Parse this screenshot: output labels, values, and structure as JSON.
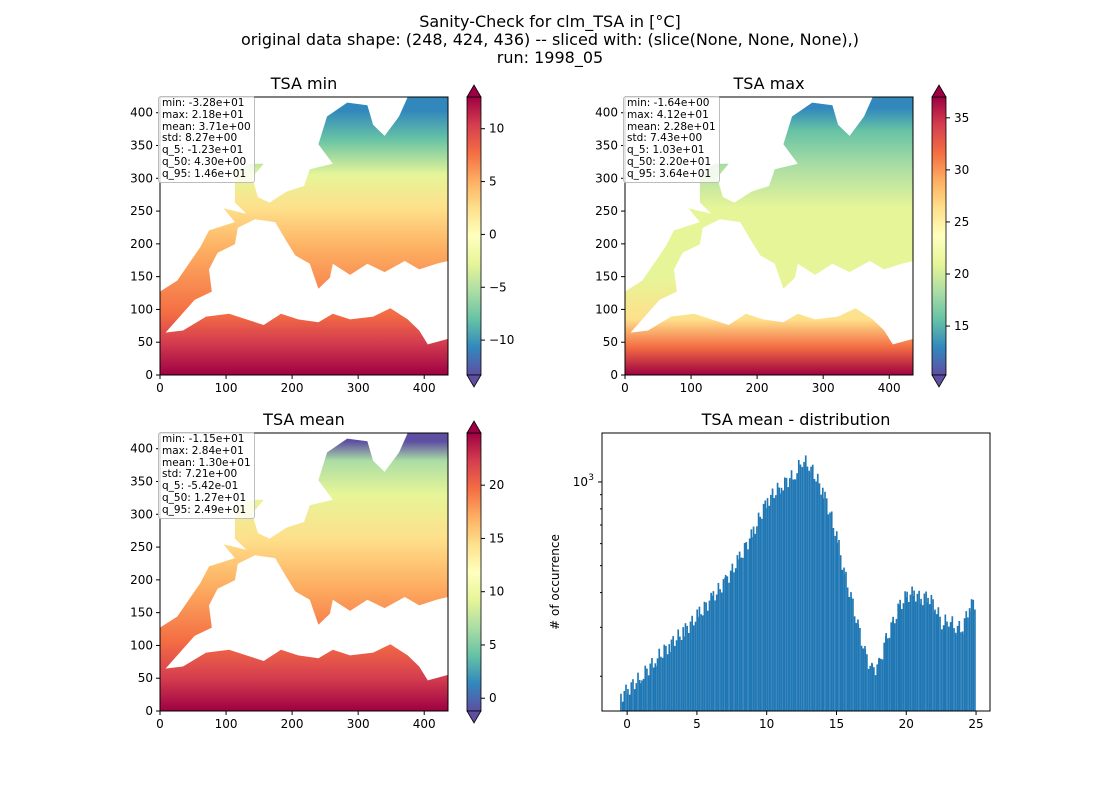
{
  "suptitle": {
    "line1": "Sanity-Check for clm_TSA in [°C]",
    "line2": "original data shape: (248, 424, 436) -- sliced with: (slice(None, None, None),)",
    "line3": "run: 1998_05"
  },
  "colors": {
    "hist_bar": "#1f77b4",
    "axes": "#000000",
    "stats_border": "#bdbdbd"
  },
  "colormap": "Spectral_r",
  "chart_data": [
    {
      "type": "heatmap",
      "title": "TSA min",
      "x_ticks": [
        0,
        100,
        200,
        300,
        400
      ],
      "y_ticks": [
        0,
        50,
        100,
        150,
        200,
        250,
        300,
        350,
        400
      ],
      "xlim": [
        0,
        436
      ],
      "ylim": [
        0,
        424
      ],
      "colorbar": {
        "ticks": [
          -10,
          -5,
          0,
          5,
          10
        ],
        "tick_labels": [
          "−10",
          "−5",
          "0",
          "5",
          "10"
        ],
        "range": [
          -13.3,
          13.0
        ],
        "extend": "both"
      },
      "stats": [
        "min: -3.28e+01",
        "max: 2.18e+01",
        "mean: 3.71e+00",
        "std: 8.27e+00",
        "q_5: -1.23e+01",
        "q_50: 4.30e+00",
        "q_95: 1.46e+01"
      ]
    },
    {
      "type": "heatmap",
      "title": "TSA max",
      "x_ticks": [
        0,
        100,
        200,
        300,
        400
      ],
      "y_ticks": [
        0,
        50,
        100,
        150,
        200,
        250,
        300,
        350,
        400
      ],
      "xlim": [
        0,
        436
      ],
      "ylim": [
        0,
        424
      ],
      "colorbar": {
        "ticks": [
          15,
          20,
          25,
          30,
          35
        ],
        "tick_labels": [
          "15",
          "20",
          "25",
          "30",
          "35"
        ],
        "range": [
          10.3,
          37.0
        ],
        "extend": "both"
      },
      "stats": [
        "min: -1.64e+00",
        "max: 4.12e+01",
        "mean: 2.28e+01",
        "std: 7.43e+00",
        "q_5: 1.03e+01",
        "q_50: 2.20e+01",
        "q_95: 3.64e+01"
      ]
    },
    {
      "type": "heatmap",
      "title": "TSA mean",
      "x_ticks": [
        0,
        100,
        200,
        300,
        400
      ],
      "y_ticks": [
        0,
        50,
        100,
        150,
        200,
        250,
        300,
        350,
        400
      ],
      "xlim": [
        0,
        436
      ],
      "ylim": [
        0,
        424
      ],
      "colorbar": {
        "ticks": [
          0,
          5,
          10,
          15,
          20
        ],
        "tick_labels": [
          "0",
          "5",
          "10",
          "15",
          "20"
        ],
        "range": [
          -1.2,
          24.9
        ],
        "extend": "both"
      },
      "stats": [
        "min: -1.15e+01",
        "max: 2.84e+01",
        "mean: 1.30e+01",
        "std: 7.21e+00",
        "q_5: -5.42e-01",
        "q_50: 1.27e+01",
        "q_95: 2.49e+01"
      ]
    },
    {
      "type": "bar",
      "subtype": "histogram",
      "title": "TSA mean - distribution",
      "ylabel": "# of occurrence",
      "yscale": "log",
      "x_ticks": [
        0,
        5,
        10,
        15,
        20,
        25
      ],
      "y_tick_label": "10",
      "y_tick_exp": "3",
      "xlim": [
        -1.8,
        26
      ],
      "ylim": [
        150,
        1500
      ],
      "bins": {
        "x": [
          -0.5,
          0.0,
          1.0,
          2.0,
          3.0,
          4.0,
          5.0,
          6.0,
          7.0,
          8.0,
          9.0,
          10.0,
          11.0,
          12.0,
          12.5,
          13.0,
          14.0,
          15.0,
          15.5,
          16.0,
          16.5,
          17.0,
          17.5,
          18.0,
          18.5,
          19.0,
          19.5,
          20.0,
          20.5,
          21.0,
          21.5,
          22.0,
          22.5,
          23.0,
          23.5,
          24.0,
          24.5,
          24.9
        ],
        "counts": [
          170,
          180,
          200,
          230,
          260,
          290,
          330,
          380,
          440,
          530,
          660,
          860,
          970,
          1070,
          1200,
          1150,
          920,
          620,
          470,
          380,
          300,
          240,
          210,
          220,
          270,
          310,
          360,
          390,
          400,
          380,
          390,
          360,
          310,
          320,
          300,
          300,
          360,
          370
        ]
      },
      "bin_width": 0.12
    }
  ]
}
